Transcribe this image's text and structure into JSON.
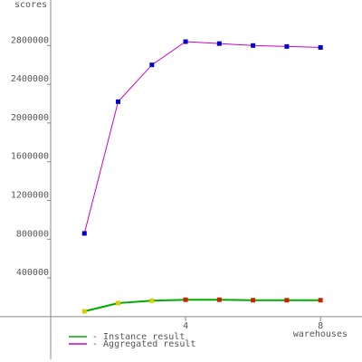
{
  "chart_data": {
    "type": "line",
    "y_label": "scores",
    "x_label": "warehouses",
    "x": [
      1,
      2,
      3,
      4,
      5,
      6,
      7,
      8
    ],
    "series": [
      {
        "name": "- Instance result",
        "color": "#00aa00",
        "point_colors": [
          "#ddcc00",
          "#ddcc00",
          "#ddcc00",
          "#cc2200",
          "#cc2200",
          "#cc2200",
          "#cc2200",
          "#cc2200"
        ],
        "values": [
          55000,
          140000,
          165000,
          175000,
          175000,
          170000,
          170000,
          170000
        ]
      },
      {
        "name": "- Aggregated result",
        "color": "#cc00cc",
        "point_colors": [
          "#0000cc",
          "#0000cc",
          "#0000cc",
          "#0000cc",
          "#0000cc",
          "#0000cc",
          "#0000cc",
          "#0000cc"
        ],
        "values": [
          860000,
          2220000,
          2600000,
          2840000,
          2820000,
          2800000,
          2790000,
          2780000
        ]
      }
    ],
    "xlim": [
      0,
      9.23
    ],
    "xticks": [
      4,
      8
    ],
    "ylim": [
      -440000,
      3270000
    ],
    "yticks": [
      400000,
      800000,
      1200000,
      1600000,
      2000000,
      2400000,
      2800000
    ]
  }
}
